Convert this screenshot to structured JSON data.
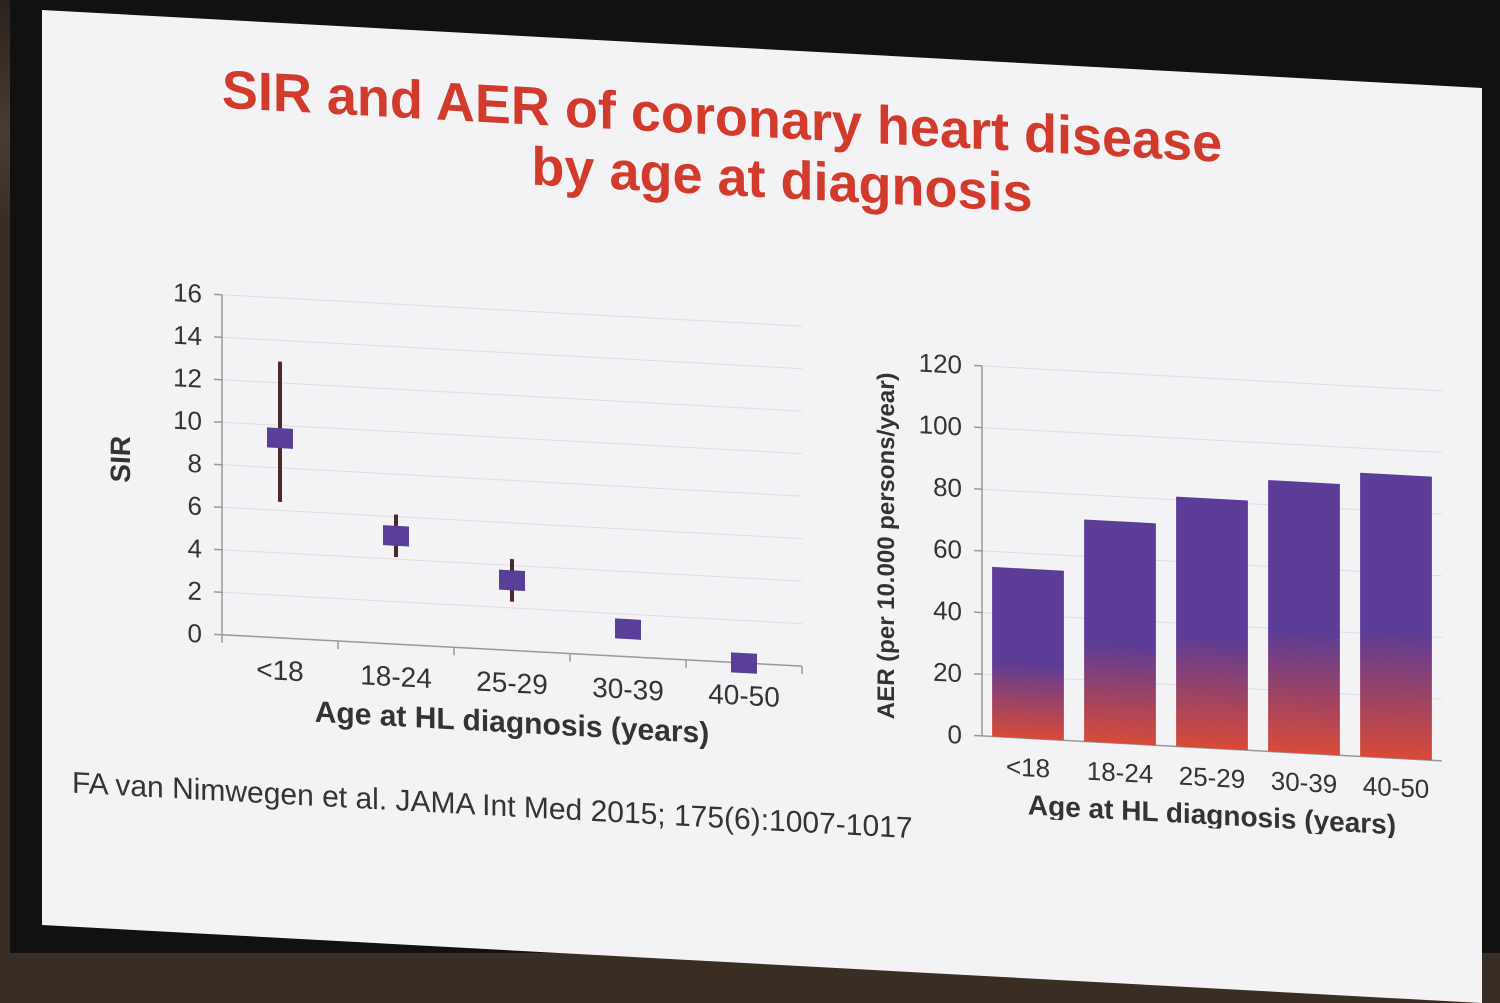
{
  "slide": {
    "title_line1": "SIR and AER of coronary heart disease",
    "title_line2": "by age at diagnosis",
    "citation": "FA van Nimwegen et al. JAMA Int Med 2015; 175(6):1007-1017"
  },
  "colors": {
    "title": "#d23a2c",
    "marker": "#5a3f9a",
    "errorbar": "#4a2a2a",
    "bar_top": "#5b3c96",
    "bar_bottom": "#d84a38"
  },
  "chart_data": [
    {
      "type": "scatter",
      "categories": [
        "<18",
        "18-24",
        "25-29",
        "30-39",
        "40-50"
      ],
      "values": [
        9.4,
        5.1,
        3.3,
        1.3,
        0.0
      ],
      "error_low": [
        6.4,
        4.1,
        2.3,
        null,
        null
      ],
      "error_high": [
        13.0,
        6.1,
        4.3,
        null,
        null
      ],
      "xlabel": "Age at HL diagnosis (years)",
      "ylabel": "SIR",
      "ylim": [
        0,
        16
      ],
      "yticks": [
        0,
        2,
        4,
        6,
        8,
        10,
        12,
        14,
        16
      ],
      "grid": true
    },
    {
      "type": "bar",
      "categories": [
        "<18",
        "18-24",
        "25-29",
        "30-39",
        "40-50"
      ],
      "values": [
        55,
        72,
        81,
        88,
        92
      ],
      "xlabel": "Age at HL diagnosis (years)",
      "ylabel": "AER (per 10.000 persons/year)",
      "ylim": [
        0,
        120
      ],
      "yticks": [
        0,
        20,
        40,
        60,
        80,
        100,
        120
      ],
      "grid": true
    }
  ]
}
